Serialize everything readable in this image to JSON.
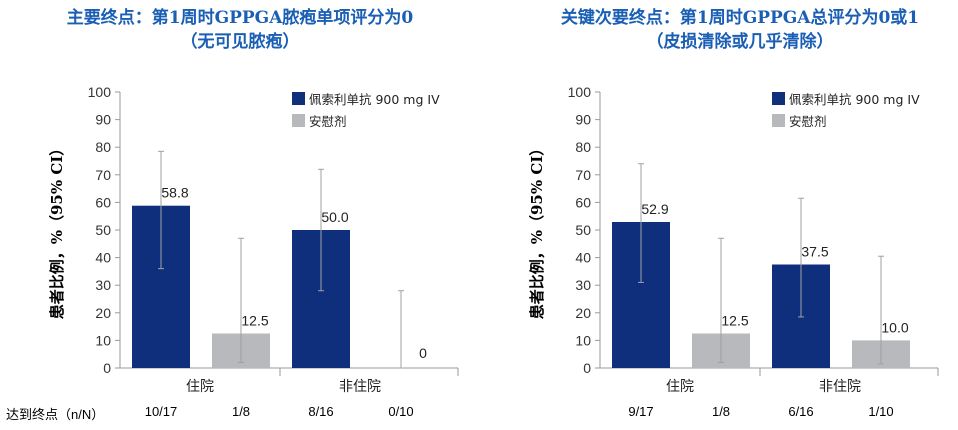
{
  "chart_data": [
    {
      "type": "bar",
      "title": "主要终点：第1周时GPPGA脓疱单项评分为0",
      "subtitle": "（无可见脓疱）",
      "ylabel": "患者比例，%（95% CI）",
      "ylim": [
        0,
        100
      ],
      "yticks": [
        0,
        10,
        20,
        30,
        40,
        50,
        60,
        70,
        80,
        90,
        100
      ],
      "categories": [
        "住院",
        "非住院"
      ],
      "legend_position": "top-right",
      "series": [
        {
          "name": "佩索利单抗 900 mg IV",
          "color": "#0f2f7c",
          "values": [
            58.8,
            50.0
          ],
          "value_labels": [
            "58.8",
            "50.0"
          ],
          "ci_low": [
            36,
            28
          ],
          "ci_high": [
            78.5,
            72
          ],
          "n_labels": [
            "10/17",
            "8/16"
          ]
        },
        {
          "name": "安慰剂",
          "color": "#b8b9bd",
          "values": [
            12.5,
            0
          ],
          "value_labels": [
            "12.5",
            "0"
          ],
          "ci_low": [
            2,
            0
          ],
          "ci_high": [
            47,
            28
          ],
          "n_labels": [
            "1/8",
            "0/10"
          ]
        }
      ]
    },
    {
      "type": "bar",
      "title": "关键次要终点：第1周时GPPGA总评分为0或1",
      "subtitle": "（皮损清除或几乎清除）",
      "ylabel": "患者比例，%（95% CI）",
      "ylim": [
        0,
        100
      ],
      "yticks": [
        0,
        10,
        20,
        30,
        40,
        50,
        60,
        70,
        80,
        90,
        100
      ],
      "categories": [
        "住院",
        "非住院"
      ],
      "legend_position": "top-right",
      "series": [
        {
          "name": "佩索利单抗 900 mg IV",
          "color": "#0f2f7c",
          "values": [
            52.9,
            37.5
          ],
          "value_labels": [
            "52.9",
            "37.5"
          ],
          "ci_low": [
            31,
            18.5
          ],
          "ci_high": [
            74,
            61.5
          ],
          "n_labels": [
            "9/17",
            "6/16"
          ]
        },
        {
          "name": "安慰剂",
          "color": "#b8b9bd",
          "values": [
            12.5,
            10.0
          ],
          "value_labels": [
            "12.5",
            "10.0"
          ],
          "ci_low": [
            2,
            1.5
          ],
          "ci_high": [
            47,
            40.5
          ],
          "n_labels": [
            "1/8",
            "1/10"
          ]
        }
      ]
    }
  ],
  "n_row_label": "达到终点（n/N）"
}
